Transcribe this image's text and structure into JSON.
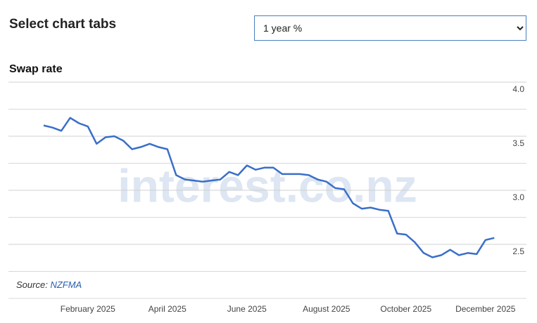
{
  "page": {
    "heading": "Select chart tabs",
    "select_options": [
      "1 year %"
    ]
  },
  "chart_data": {
    "type": "line",
    "title": "Swap rate",
    "categories": [
      null,
      null,
      null,
      null,
      null,
      "February 2025",
      null,
      null,
      null,
      null,
      null,
      null,
      null,
      null,
      "April 2025",
      null,
      null,
      null,
      null,
      null,
      null,
      null,
      null,
      "June 2025",
      null,
      null,
      null,
      null,
      null,
      null,
      null,
      null,
      "August 2025",
      null,
      null,
      null,
      null,
      null,
      null,
      null,
      null,
      "October 2025",
      null,
      null,
      null,
      null,
      null,
      null,
      null,
      null,
      "December 2025",
      null
    ],
    "series": [
      {
        "name": "1 year",
        "color": "#3a6fc8",
        "values": [
          3.6,
          3.58,
          3.55,
          3.67,
          3.62,
          3.59,
          3.43,
          3.49,
          3.5,
          3.46,
          3.38,
          3.4,
          3.43,
          3.4,
          3.38,
          3.14,
          3.1,
          3.09,
          3.08,
          3.09,
          3.1,
          3.17,
          3.14,
          3.23,
          3.19,
          3.21,
          3.21,
          3.15,
          3.15,
          3.15,
          3.14,
          3.1,
          3.08,
          3.02,
          3.01,
          2.88,
          2.83,
          2.84,
          2.82,
          2.81,
          2.6,
          2.59,
          2.52,
          2.42,
          2.38,
          2.4,
          2.45,
          2.4,
          2.42,
          2.41,
          2.54,
          2.56
        ]
      }
    ],
    "ylim": [
      2.0,
      4.0
    ],
    "yticks": [
      {
        "value": 2.5,
        "label": "2.5"
      },
      {
        "value": 3,
        "label": "3.0"
      },
      {
        "value": 3.5,
        "label": "3.5"
      },
      {
        "value": 4,
        "label": "4.0"
      }
    ],
    "minor_yticks": [
      2.0,
      2.25,
      2.75,
      3.25,
      3.75
    ],
    "grid": true,
    "watermark": "interest.co.nz",
    "source_label": "Source:",
    "source_name": "NZFMA"
  }
}
